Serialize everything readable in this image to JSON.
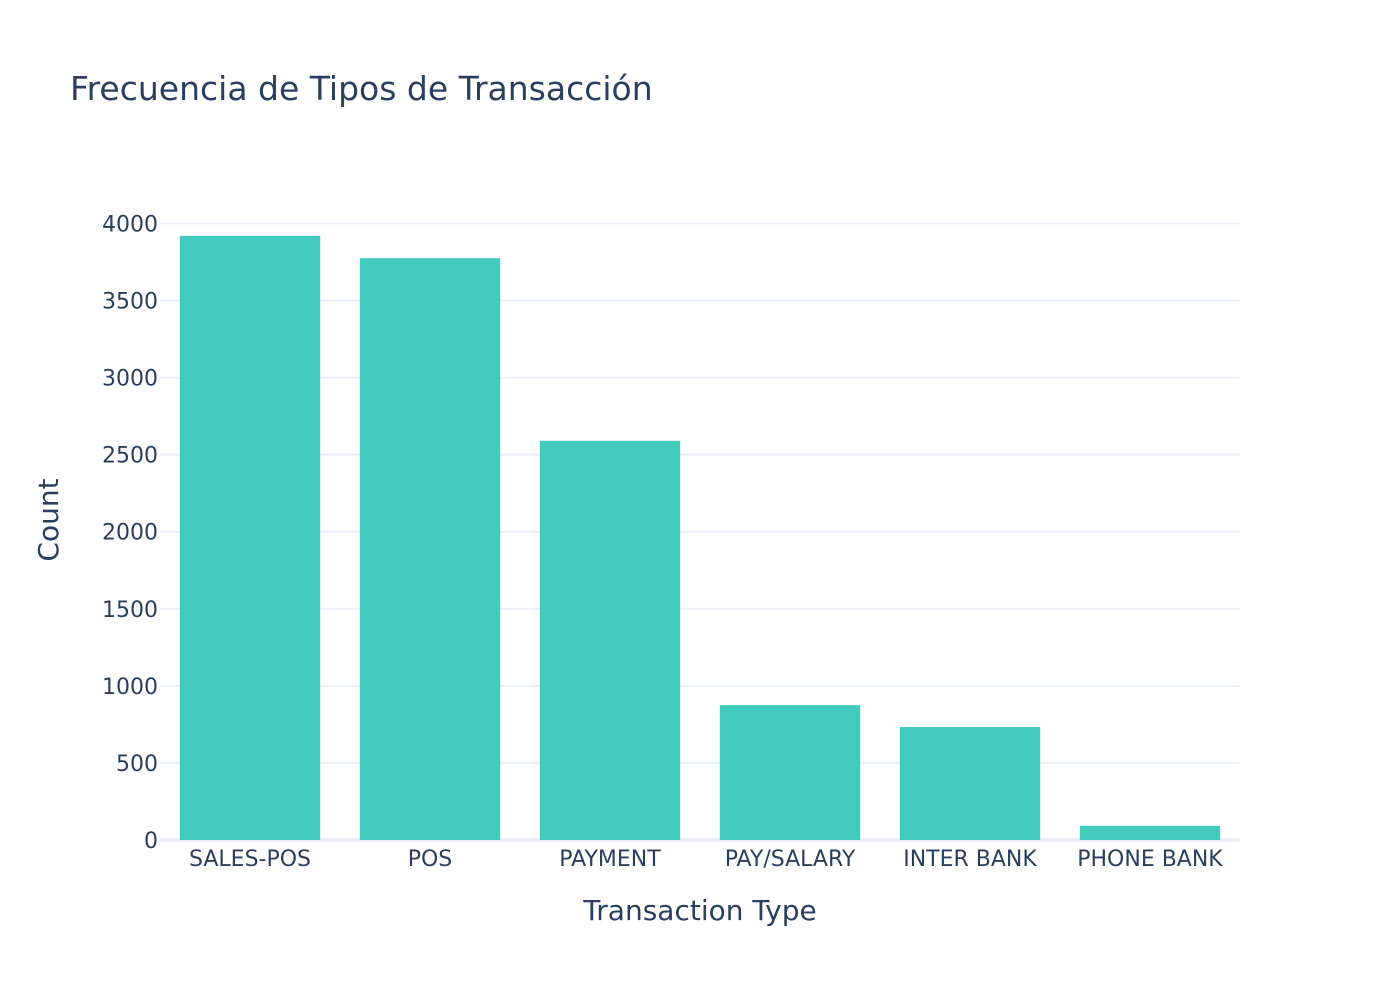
{
  "chart_data": {
    "type": "bar",
    "title": "Frecuencia de Tipos de Transacción",
    "xlabel": "Transaction Type",
    "ylabel": "Count",
    "categories": [
      "SALES-POS",
      "POS",
      "PAYMENT",
      "PAY/SALARY",
      "INTER BANK",
      "PHONE BANK"
    ],
    "values": [
      3920,
      3775,
      2590,
      875,
      733,
      92
    ],
    "ylim": [
      0,
      4120
    ],
    "yticks": [
      0,
      500,
      1000,
      1500,
      2000,
      2500,
      3000,
      3500,
      4000
    ],
    "grid": true,
    "bar_color": "#2ec4b6",
    "bar_opacity": 0.9
  }
}
